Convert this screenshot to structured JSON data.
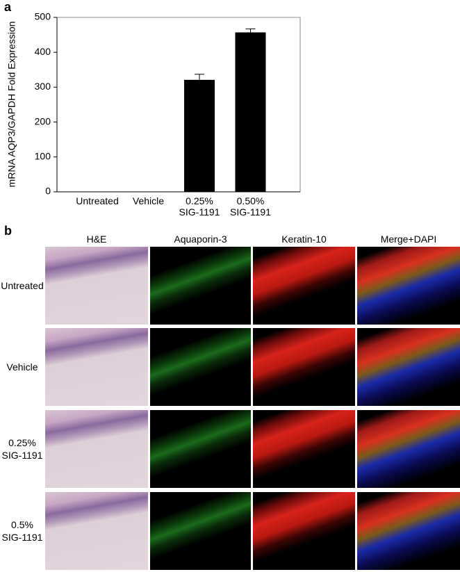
{
  "chart_data": {
    "type": "bar",
    "ylabel": "mRNA AQP3/GAPDH Fold Expression",
    "categories": [
      "Untreated",
      "Vehicle",
      "0.25%\nSIG-1191",
      "0.50%\nSIG-1191"
    ],
    "values": [
      1,
      1,
      321,
      457
    ],
    "errors": [
      0,
      0,
      16,
      10
    ],
    "color": "#000000",
    "ylim": [
      0,
      500
    ],
    "yticks": [
      0,
      100,
      200,
      300,
      400,
      500
    ]
  },
  "panel_a": {
    "label": "a"
  },
  "panel_b": {
    "label": "b",
    "columns": [
      "H&E",
      "Aquaporin-3",
      "Keratin-10",
      "Merge+DAPI"
    ],
    "rows": [
      "Untreated",
      "Vehicle",
      "0.25%\nSIG-1191",
      "0.5%\nSIG-1191"
    ]
  }
}
